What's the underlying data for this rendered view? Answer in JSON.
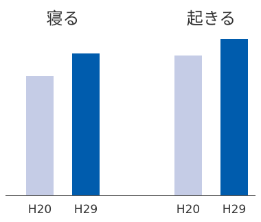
{
  "chart_data": {
    "type": "bar",
    "groups": [
      "寝る",
      "起きる"
    ],
    "categories": [
      "H20",
      "H29"
    ],
    "series": [
      {
        "values": [
          58,
          68
        ],
        "color": "#c5cce6"
      },
      {
        "values": [
          69,
          76
        ],
        "color": "#005cad"
      }
    ],
    "ylim": [
      0,
      80
    ],
    "grid": false,
    "legend": "none"
  }
}
